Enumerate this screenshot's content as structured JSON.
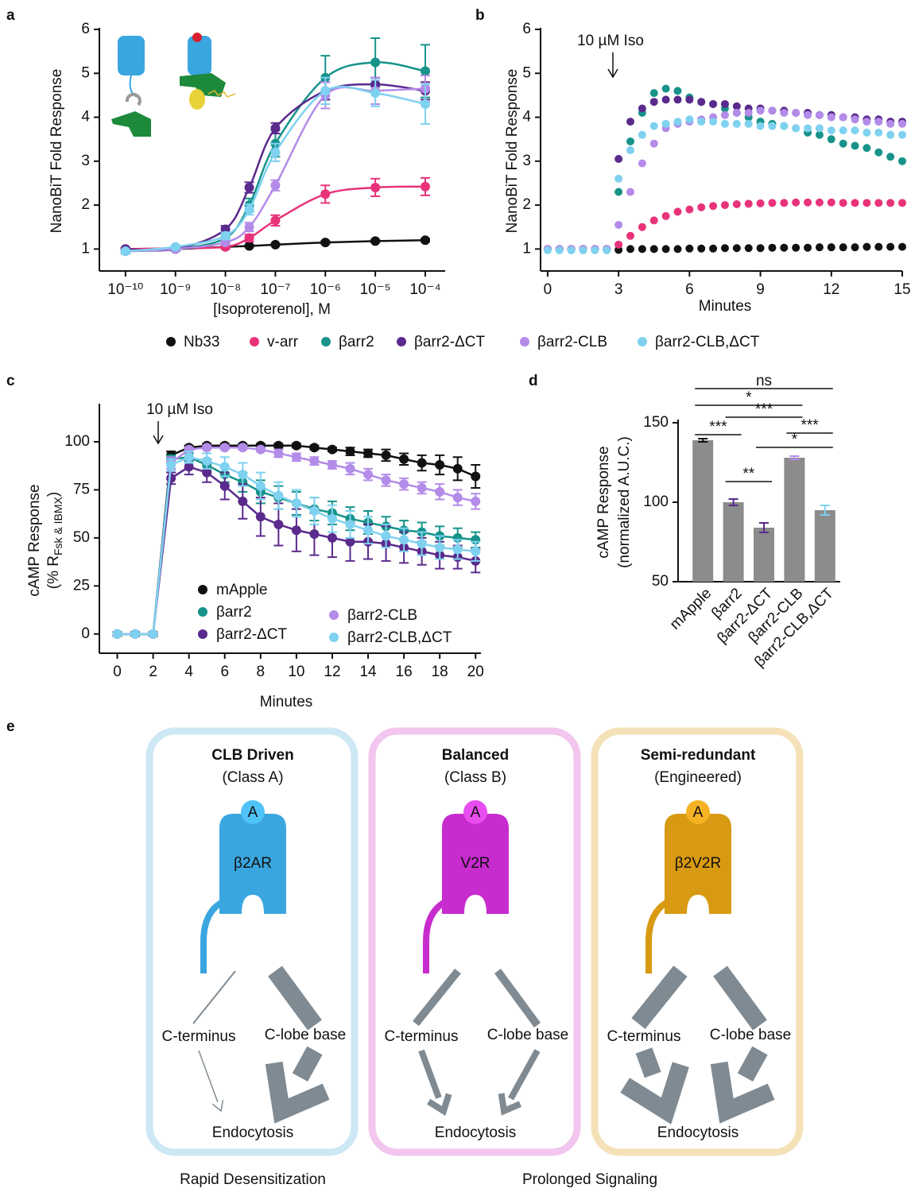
{
  "chart_data": [
    {
      "panel": "a",
      "type": "line",
      "xlabel": "[Isoproterenol], M",
      "ylabel": "NanoBiT Fold Response",
      "xlog": true,
      "x": [
        1e-10,
        1e-09,
        1e-08,
        3e-08,
        1e-07,
        1e-06,
        1e-05,
        0.0001
      ],
      "xlim": [
        3e-11,
        0.00025
      ],
      "xticks": [
        {
          "value": 1e-10,
          "label": "10⁻¹⁰"
        },
        {
          "value": 1e-09,
          "label": "10⁻⁹"
        },
        {
          "value": 1e-08,
          "label": "10⁻⁸"
        },
        {
          "value": 1e-07,
          "label": "10⁻⁷"
        },
        {
          "value": 1e-06,
          "label": "10⁻⁶"
        },
        {
          "value": 1e-05,
          "label": "10⁻⁵"
        },
        {
          "value": 0.0001,
          "label": "10⁻⁴"
        }
      ],
      "ylim": [
        0.5,
        6
      ],
      "yticks": [
        1,
        2,
        3,
        4,
        5,
        6
      ],
      "series": [
        {
          "name": "Nb33",
          "color": "#111111",
          "values": [
            1.0,
            1.0,
            1.05,
            1.07,
            1.1,
            1.15,
            1.18,
            1.2
          ],
          "errors": [
            0.02,
            0.02,
            0.02,
            0.02,
            0.02,
            0.03,
            0.03,
            0.03
          ]
        },
        {
          "name": "v-arr",
          "color": "#e8337a",
          "values": [
            1.0,
            1.02,
            1.05,
            1.25,
            1.65,
            2.25,
            2.4,
            2.42
          ],
          "errors": [
            0.03,
            0.03,
            0.05,
            0.08,
            0.12,
            0.2,
            0.2,
            0.2
          ]
        },
        {
          "name": "βarr2",
          "color": "#17938a",
          "values": [
            0.95,
            1.0,
            1.25,
            2.0,
            3.4,
            4.9,
            5.25,
            5.05
          ],
          "errors": [
            0.05,
            0.05,
            0.1,
            0.15,
            0.3,
            0.5,
            0.55,
            0.6
          ]
        },
        {
          "name": "βarr2-ΔCT",
          "color": "#5a2a8c",
          "values": [
            1.0,
            1.0,
            1.45,
            2.4,
            3.75,
            4.6,
            4.75,
            4.6
          ],
          "errors": [
            0.03,
            0.03,
            0.08,
            0.12,
            0.12,
            0.2,
            0.15,
            0.2
          ]
        },
        {
          "name": "βarr2-CLB",
          "color": "#b38be8",
          "values": [
            0.95,
            1.0,
            1.15,
            1.5,
            2.45,
            4.5,
            4.6,
            4.65
          ],
          "errors": [
            0.03,
            0.03,
            0.05,
            0.1,
            0.12,
            0.3,
            0.3,
            0.3
          ]
        },
        {
          "name": "βarr2-CLB,ΔCT",
          "color": "#7fd1f0",
          "values": [
            0.95,
            1.05,
            1.3,
            1.9,
            3.2,
            4.6,
            4.55,
            4.3
          ],
          "errors": [
            0.03,
            0.03,
            0.08,
            0.12,
            0.2,
            0.3,
            0.3,
            0.45
          ]
        }
      ]
    },
    {
      "panel": "b",
      "type": "scatter",
      "xlabel": "Minutes",
      "ylabel": "NanoBiT Fold Response",
      "annotation": "10 µM Iso",
      "x": [
        0,
        0.5,
        1,
        1.5,
        2,
        2.5,
        3,
        3.5,
        4,
        4.5,
        5,
        5.5,
        6,
        6.5,
        7,
        7.5,
        8,
        8.5,
        9,
        9.5,
        10,
        10.5,
        11,
        11.5,
        12,
        12.5,
        13,
        13.5,
        14,
        14.5,
        15
      ],
      "xlim": [
        -0.3,
        15
      ],
      "xticks": [
        0,
        3,
        6,
        9,
        12,
        15
      ],
      "ylim": [
        0.5,
        6
      ],
      "yticks": [
        1,
        2,
        3,
        4,
        5,
        6
      ],
      "series": [
        {
          "name": "Nb33",
          "color": "#111111",
          "values": [
            1,
            1,
            1,
            1,
            1,
            1,
            0.98,
            1,
            1,
            1,
            1,
            1,
            1.01,
            1.01,
            1.01,
            1.02,
            1.02,
            1.02,
            1.02,
            1.03,
            1.03,
            1.03,
            1.03,
            1.04,
            1.04,
            1.04,
            1.04,
            1.05,
            1.05,
            1.05,
            1.05
          ]
        },
        {
          "name": "v-arr",
          "color": "#e8337a",
          "values": [
            1,
            1,
            1,
            1,
            1,
            1,
            1.1,
            1.3,
            1.5,
            1.65,
            1.75,
            1.85,
            1.9,
            1.95,
            1.98,
            2.0,
            2.02,
            2.03,
            2.04,
            2.05,
            2.05,
            2.06,
            2.06,
            2.06,
            2.06,
            2.05,
            2.05,
            2.05,
            2.05,
            2.05,
            2.05
          ]
        },
        {
          "name": "βarr2",
          "color": "#17938a",
          "values": [
            1,
            1,
            1,
            1,
            1,
            1,
            2.3,
            3.45,
            4.1,
            4.55,
            4.65,
            4.6,
            4.45,
            4.35,
            4.3,
            4.2,
            4.1,
            4.0,
            3.9,
            3.85,
            3.8,
            3.75,
            3.65,
            3.6,
            3.5,
            3.4,
            3.35,
            3.3,
            3.2,
            3.1,
            3.0
          ]
        },
        {
          "name": "βarr2-ΔCT",
          "color": "#5a2a8c",
          "values": [
            1,
            1,
            1,
            1,
            1,
            1,
            3.05,
            3.9,
            4.2,
            4.35,
            4.4,
            4.4,
            4.4,
            4.35,
            4.3,
            4.3,
            4.25,
            4.2,
            4.2,
            4.15,
            4.15,
            4.1,
            4.1,
            4.05,
            4.05,
            4.0,
            4.0,
            3.95,
            3.95,
            3.9,
            3.9
          ]
        },
        {
          "name": "βarr2-CLB",
          "color": "#b38be8",
          "values": [
            1,
            1,
            1,
            1,
            1,
            1,
            1.55,
            2.3,
            2.95,
            3.4,
            3.75,
            3.85,
            3.9,
            3.95,
            4.0,
            4.05,
            4.1,
            4.1,
            4.15,
            4.15,
            4.1,
            4.1,
            4.05,
            4.05,
            4.0,
            4.0,
            3.95,
            3.9,
            3.9,
            3.85,
            3.85
          ]
        },
        {
          "name": "βarr2-CLB,ΔCT",
          "color": "#7fd1f0",
          "values": [
            0.97,
            0.97,
            0.97,
            0.97,
            0.97,
            0.97,
            2.6,
            3.25,
            3.6,
            3.8,
            3.85,
            3.9,
            3.95,
            3.9,
            3.9,
            3.85,
            3.85,
            3.85,
            3.8,
            3.8,
            3.8,
            3.75,
            3.75,
            3.75,
            3.7,
            3.7,
            3.7,
            3.65,
            3.65,
            3.6,
            3.6
          ]
        }
      ]
    },
    {
      "panel": "c",
      "type": "line",
      "xlabel": "Minutes",
      "ylabel": [
        "cAMP Response",
        "(% R",
        "Fsk & IBMX",
        ")"
      ],
      "annotation": "10 µM Iso",
      "x": [
        0,
        1,
        2,
        3,
        4,
        5,
        6,
        7,
        8,
        9,
        10,
        11,
        12,
        13,
        14,
        15,
        16,
        17,
        18,
        19,
        20
      ],
      "xlim": [
        -1,
        20.3
      ],
      "xticks": [
        0,
        2,
        4,
        6,
        8,
        10,
        12,
        14,
        16,
        18,
        20
      ],
      "ylim": [
        -10,
        119
      ],
      "yticks": [
        0,
        25,
        50,
        75,
        100
      ],
      "series": [
        {
          "name": "mApple",
          "color": "#111111",
          "values": [
            0,
            0,
            0,
            93,
            97,
            98,
            98,
            98,
            98,
            98,
            98,
            97,
            96,
            95,
            94,
            93,
            91,
            89,
            88,
            86,
            82
          ],
          "errors": [
            1,
            1,
            1,
            2,
            1,
            1,
            1,
            1,
            1,
            1,
            1,
            1,
            1,
            2,
            2,
            3,
            3,
            4,
            5,
            6,
            6
          ]
        },
        {
          "name": "βarr2",
          "color": "#17938a",
          "values": [
            0,
            0,
            0,
            91,
            92,
            88,
            83,
            79,
            74,
            71,
            68,
            65,
            63,
            60,
            58,
            56,
            54,
            53,
            51,
            50,
            49
          ],
          "errors": [
            0,
            0,
            0,
            2,
            2,
            3,
            4,
            5,
            6,
            6,
            6,
            6,
            6,
            6,
            6,
            5,
            5,
            5,
            5,
            5,
            4
          ]
        },
        {
          "name": "βarr2-ΔCT",
          "color": "#5a2a8c",
          "values": [
            0,
            0,
            0,
            81,
            87,
            84,
            77,
            69,
            61,
            57,
            54,
            52,
            50,
            48,
            48,
            47,
            45,
            43,
            41,
            40,
            38
          ],
          "errors": [
            0,
            0,
            0,
            3,
            4,
            5,
            7,
            9,
            10,
            11,
            11,
            11,
            10,
            10,
            9,
            9,
            8,
            7,
            7,
            6,
            6
          ]
        },
        {
          "name": "βarr2-CLB",
          "color": "#b38be8",
          "values": [
            0,
            0,
            0,
            89,
            96,
            97,
            97,
            97,
            96,
            94,
            92,
            90,
            88,
            86,
            83,
            80,
            78,
            76,
            74,
            71,
            69
          ],
          "errors": [
            0,
            0,
            0,
            3,
            1,
            1,
            1,
            1,
            1,
            2,
            2,
            2,
            2,
            3,
            3,
            3,
            3,
            3,
            4,
            4,
            4
          ]
        },
        {
          "name": "βarr2-CLB,ΔCT",
          "color": "#7fd1f0",
          "values": [
            0,
            0,
            0,
            88,
            92,
            90,
            87,
            83,
            77,
            72,
            68,
            64,
            60,
            57,
            54,
            51,
            49,
            47,
            45,
            44,
            43
          ],
          "errors": [
            0,
            0,
            0,
            3,
            3,
            4,
            5,
            6,
            7,
            7,
            7,
            7,
            7,
            7,
            7,
            6,
            6,
            6,
            6,
            5,
            5
          ]
        }
      ]
    },
    {
      "panel": "d",
      "type": "bar",
      "ylabel": [
        "cAMP Response",
        "(normalized A.U.C.)"
      ],
      "categories": [
        "mApple",
        "βarr2",
        "βarr2-ΔCT",
        "βarr2-CLB",
        "βarr2-CLB,ΔCT"
      ],
      "values": [
        139,
        100,
        84,
        128,
        95
      ],
      "errors": [
        1,
        2,
        3,
        1,
        3
      ],
      "color": "#8c8c8c",
      "error_colors": [
        "#111111",
        "#5a2a8c",
        "#5a2a8c",
        "#b38be8",
        "#7fd1f0"
      ],
      "ylim": [
        50,
        151
      ],
      "yticks": [
        50,
        100,
        150
      ],
      "significance": [
        "ns",
        "*",
        "***",
        "***",
        "**",
        "*",
        "***"
      ]
    }
  ],
  "diagram": {
    "panel": "e",
    "boxes": [
      {
        "title": "CLB Driven",
        "subtitle": "(Class A)",
        "ligand": "A",
        "receptor": "β2AR",
        "left": "C-terminus",
        "right": "C-lobe base",
        "bottom": "Endocytosis"
      },
      {
        "title": "Balanced",
        "subtitle": "(Class B)",
        "ligand": "A",
        "receptor": "V2R",
        "left": "C-terminus",
        "right": "C-lobe base",
        "bottom": "Endocytosis"
      },
      {
        "title": "Semi-redundant",
        "subtitle": "(Engineered)",
        "ligand": "A",
        "receptor": "β2V2R",
        "left": "C-terminus",
        "right": "C-lobe base",
        "bottom": "Endocytosis"
      }
    ],
    "captions": [
      "Rapid Desensitization",
      "Prolonged Signaling"
    ]
  }
}
